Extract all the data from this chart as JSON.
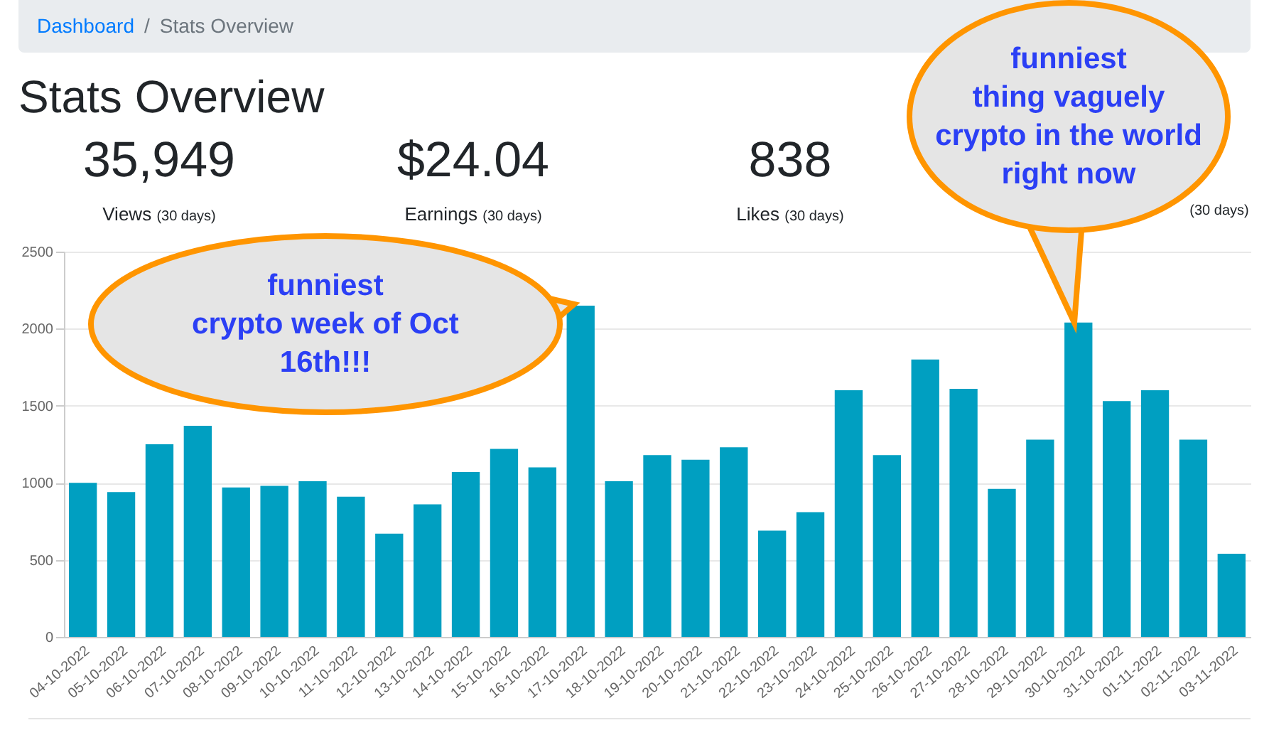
{
  "chart_data": [
    {
      "type": "other",
      "title": "Stats Overview",
      "annotations": [
        "Dashboard",
        "/",
        "Stats Overview",
        "35,949",
        "Views",
        "(30 days)",
        "$24.04",
        "Earnings",
        "(30 days)",
        "838",
        "Likes",
        "(30 days)",
        "(30 days)"
      ]
    },
    {
      "type": "bar",
      "color": "#009fc1",
      "ylim": [
        0,
        2500
      ],
      "yticks": [
        0,
        500,
        1000,
        1500,
        2000,
        2500
      ],
      "grid": "y",
      "categories": [
        "04-10-2022",
        "05-10-2022",
        "06-10-2022",
        "07-10-2022",
        "08-10-2022",
        "09-10-2022",
        "10-10-2022",
        "11-10-2022",
        "12-10-2022",
        "13-10-2022",
        "14-10-2022",
        "15-10-2022",
        "16-10-2022",
        "17-10-2022",
        "18-10-2022",
        "19-10-2022",
        "20-10-2022",
        "21-10-2022",
        "22-10-2022",
        "23-10-2022",
        "24-10-2022",
        "25-10-2022",
        "26-10-2022",
        "27-10-2022",
        "28-10-2022",
        "29-10-2022",
        "30-10-2022",
        "31-10-2022",
        "01-11-2022",
        "02-11-2022",
        "03-11-2022"
      ],
      "values": [
        1000,
        940,
        1250,
        1370,
        970,
        980,
        1010,
        910,
        670,
        860,
        1070,
        1220,
        1100,
        2150,
        1010,
        1180,
        1150,
        1230,
        690,
        810,
        1600,
        1180,
        1800,
        1610,
        960,
        1280,
        2040,
        1530,
        1600,
        1280,
        540
      ],
      "annotations": [
        "funniest\ncrypto week of Oct\n16th!!!",
        "funniest\nthing vaguely\ncrypto in the world\nright now"
      ]
    }
  ]
}
